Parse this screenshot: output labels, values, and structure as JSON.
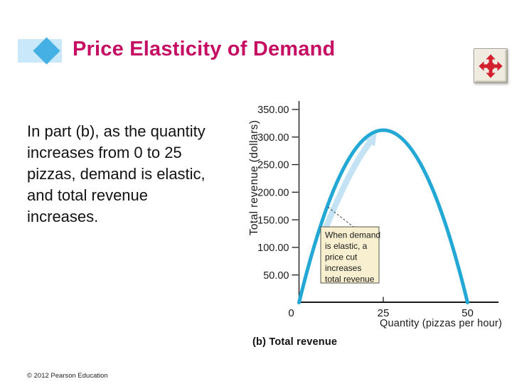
{
  "slide": {
    "title": "Price Elasticity of Demand",
    "body_lines": [
      "In part (b), as the quantity",
      "increases from 0 to 25",
      "pizzas, demand is elastic,",
      "and total revenue",
      "increases."
    ],
    "footer": "© 2012 Pearson Education"
  },
  "toolbar": {
    "move_button_icon": "move-arrows-icon"
  },
  "chart_data": {
    "type": "line",
    "caption": "(b) Total revenue",
    "xlabel": "Quantity (pizzas per hour)",
    "ylabel": "Total revenue (dollars)",
    "x_ticks": [
      0,
      25,
      50
    ],
    "y_ticks": [
      "50.00",
      "100.00",
      "150.00",
      "200.00",
      "250.00",
      "300.00",
      "350.00"
    ],
    "xlim": [
      0,
      59
    ],
    "ylim": [
      0,
      366
    ],
    "grid": false,
    "legend": "none",
    "series": [
      {
        "name": "Total revenue",
        "color": "#23A8D6",
        "x": [
          0,
          5,
          10,
          15,
          20,
          25,
          30,
          35,
          40,
          45,
          50
        ],
        "values": [
          0,
          112.5,
          200,
          262.5,
          300,
          312.5,
          300,
          262.5,
          200,
          112.5,
          0
        ]
      }
    ],
    "peak": {
      "x": 25,
      "value": 312.5
    },
    "annotation": {
      "lines": [
        "When demand",
        "is elastic, a",
        "price cut",
        "increases",
        "total revenue"
      ]
    }
  },
  "colors": {
    "title_text": "#C50E63",
    "bullet_rect": "#C9E8F9",
    "bullet_diamond": "#44B0E4",
    "curve": "#23A8D6",
    "curve_arrow_highlight": "#C3E3F5",
    "callout_bg": "#F7EFD0",
    "callout_border": "#55544C",
    "move_icon_red": "#D2202F",
    "move_button_bg": "#EFEBE0"
  }
}
